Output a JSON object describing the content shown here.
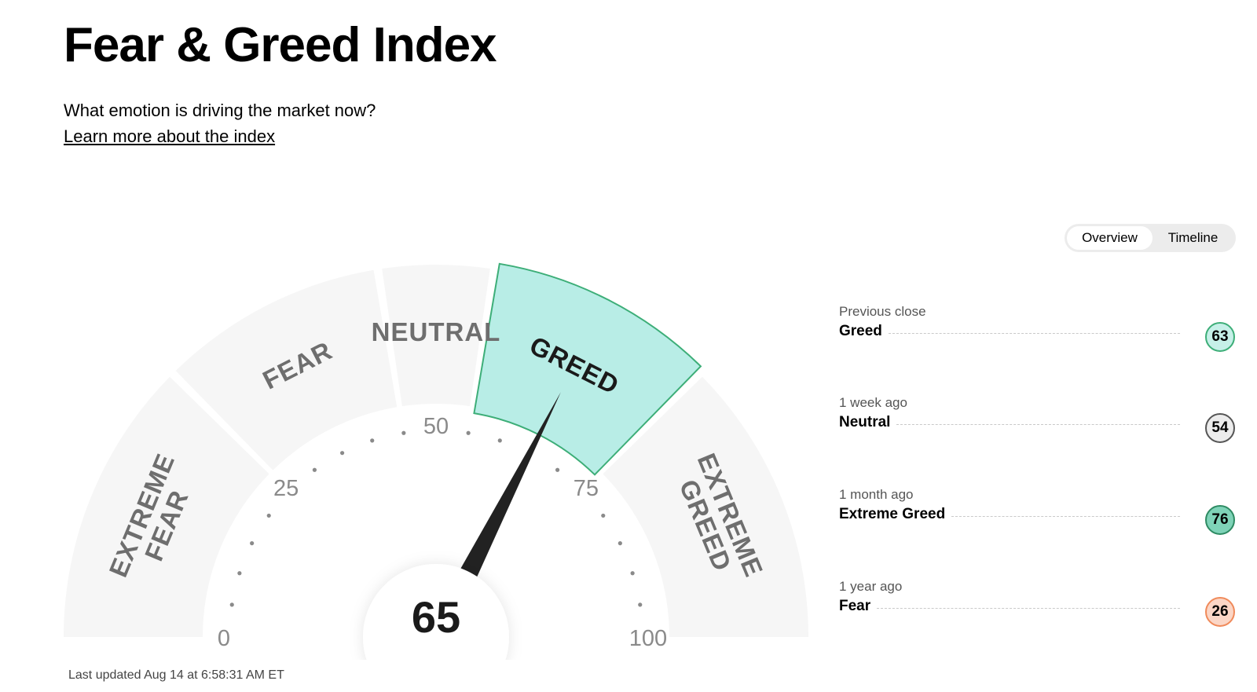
{
  "header": {
    "title": "Fear & Greed Index",
    "subtitle": "What emotion is driving the market now?",
    "learn_more": "Learn more about the index"
  },
  "view_toggle": {
    "options": [
      "Overview",
      "Timeline"
    ],
    "selected": "Overview"
  },
  "gauge": {
    "value": 65,
    "value_label": "65",
    "range": [
      0,
      100
    ],
    "ticks": [
      "0",
      "25",
      "50",
      "75",
      "100"
    ],
    "segments": [
      {
        "lines": [
          "EXTREME",
          "FEAR"
        ],
        "from": 0,
        "to": 25,
        "active": false
      },
      {
        "lines": [
          "FEAR"
        ],
        "from": 25,
        "to": 45,
        "active": false
      },
      {
        "lines": [
          "NEUTRAL"
        ],
        "from": 45,
        "to": 55,
        "active": false
      },
      {
        "lines": [
          "GREED"
        ],
        "from": 55,
        "to": 75,
        "active": true
      },
      {
        "lines": [
          "EXTREME",
          "GREED"
        ],
        "from": 75,
        "to": 100,
        "active": false
      }
    ],
    "colors": {
      "segment_inactive": "#f6f6f6",
      "segment_active": "#b8ede6",
      "segment_active_border": "#3dae78",
      "needle": "#222222",
      "label_inactive": "#6e6e6e",
      "label_active": "#1a1a1a"
    }
  },
  "history": [
    {
      "when": "Previous close",
      "rating": "Greed",
      "value": "63",
      "bg": "#c6f0e8",
      "border": "#3dae78"
    },
    {
      "when": "1 week ago",
      "rating": "Neutral",
      "value": "54",
      "bg": "#ececec",
      "border": "#555555"
    },
    {
      "when": "1 month ago",
      "rating": "Extreme Greed",
      "value": "76",
      "bg": "#7fd3b8",
      "border": "#2e8b63"
    },
    {
      "when": "1 year ago",
      "rating": "Fear",
      "value": "26",
      "bg": "#fbd6c6",
      "border": "#f08a5a"
    }
  ],
  "footer": {
    "last_updated": "Last updated Aug 14 at 6:58:31 AM ET"
  }
}
